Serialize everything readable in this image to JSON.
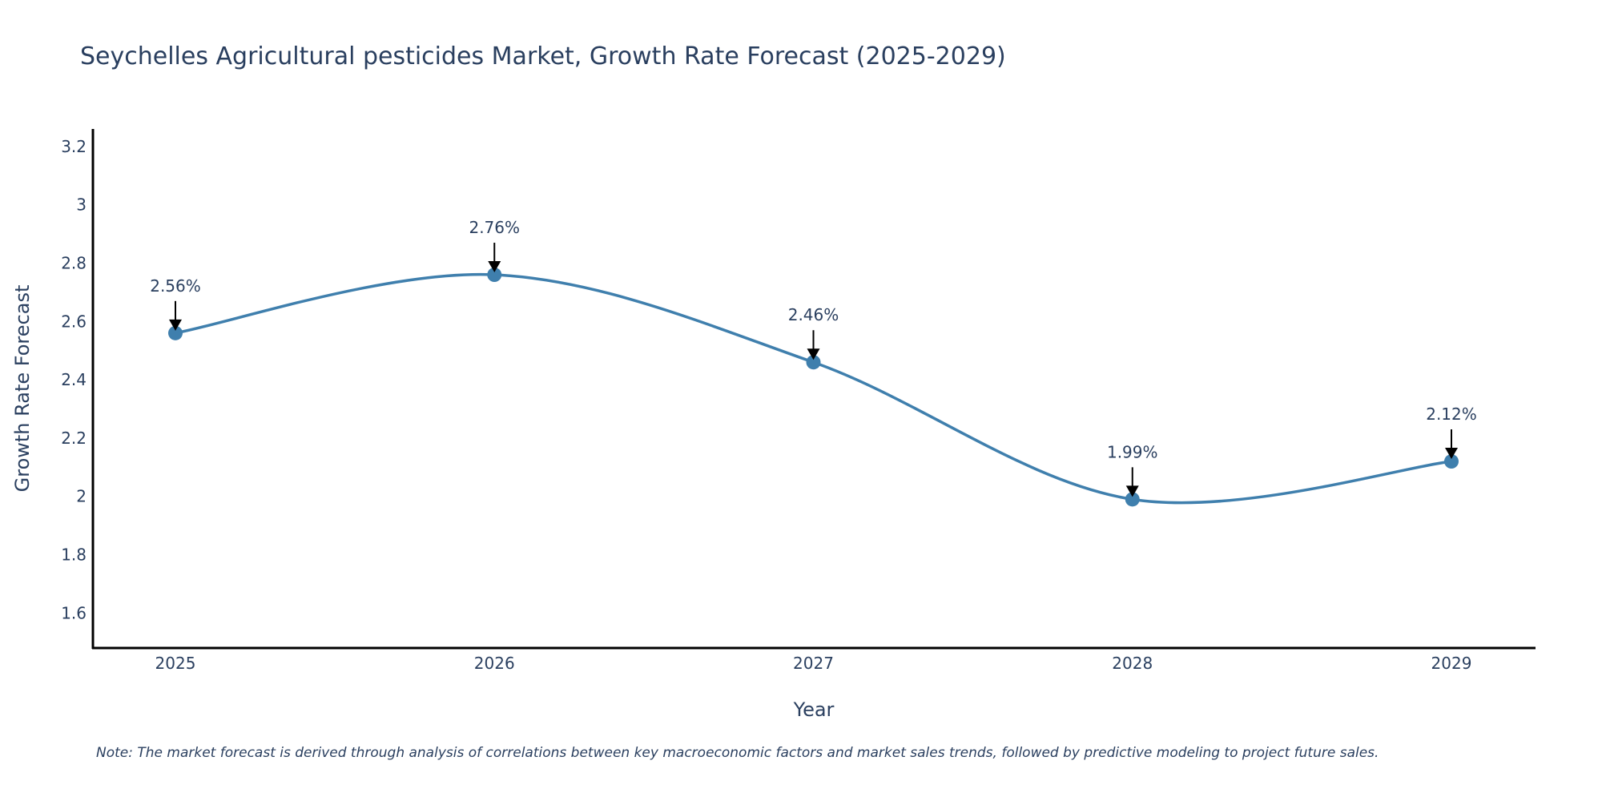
{
  "chart_data": {
    "type": "line",
    "title": "Seychelles Agricultural pesticides Market, Growth Rate Forecast (2025-2029)",
    "xlabel": "Year",
    "ylabel": "Growth Rate Forecast",
    "categories": [
      "2025",
      "2026",
      "2027",
      "2028",
      "2029"
    ],
    "series": [
      {
        "name": "Growth Rate Forecast",
        "values": [
          2.56,
          2.76,
          2.46,
          1.99,
          2.12
        ],
        "labels": [
          "2.56%",
          "2.76%",
          "2.46%",
          "1.99%",
          "2.12%"
        ],
        "color": "#3f7fad"
      }
    ],
    "yticks": [
      {
        "value": 1.6,
        "label": "1.6"
      },
      {
        "value": 1.8,
        "label": "1.8"
      },
      {
        "value": 2.0,
        "label": "2"
      },
      {
        "value": 2.2,
        "label": "2.2"
      },
      {
        "value": 2.4,
        "label": "2.4"
      },
      {
        "value": 2.6,
        "label": "2.6"
      },
      {
        "value": 2.8,
        "label": "2.8"
      },
      {
        "value": 3.0,
        "label": "3"
      },
      {
        "value": 3.2,
        "label": "3.2"
      }
    ],
    "ylim": [
      1.48,
      3.26
    ],
    "grid": false,
    "line_shape": "spline",
    "annotation_arrow_color": "#000000"
  },
  "note": "Note: The market forecast is derived through analysis of correlations between key macroeconomic factors and market sales trends, followed by predictive modeling to project future sales."
}
